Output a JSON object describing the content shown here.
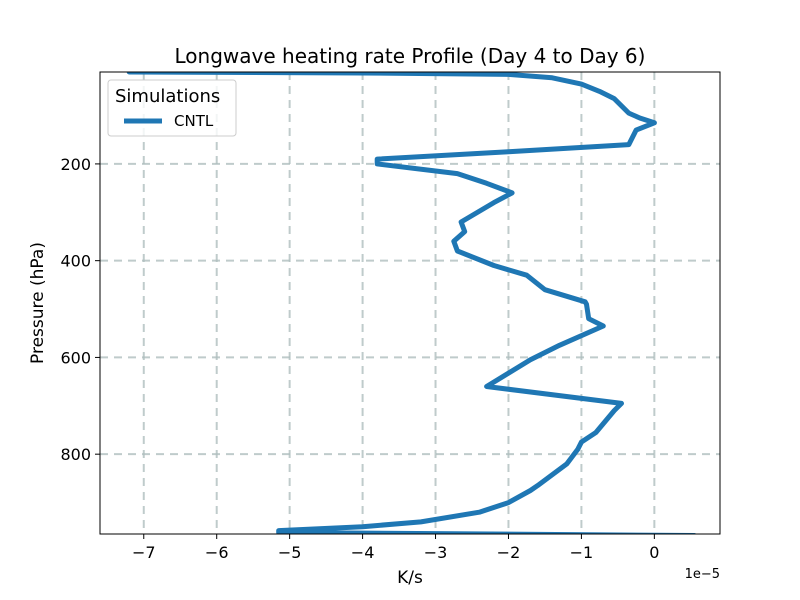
{
  "chart_data": {
    "type": "line",
    "title": "Longwave heating rate Profile (Day 4 to Day 6)",
    "xlabel": "K/s",
    "ylabel": "Pressure (hPa)",
    "x_offset_label": "1e−5",
    "xlim": [
      -7.6,
      0.9
    ],
    "ylim": [
      965,
      10
    ],
    "y_inverted": true,
    "grid": true,
    "x_ticks": [
      -7,
      -6,
      -5,
      -4,
      -3,
      -2,
      -1,
      0
    ],
    "x_tick_labels": [
      "−7",
      "−6",
      "−5",
      "−4",
      "−3",
      "−2",
      "−1",
      "0"
    ],
    "y_ticks": [
      200,
      400,
      600,
      800
    ],
    "y_tick_labels": [
      "200",
      "400",
      "600",
      "800"
    ],
    "legend": {
      "title": "Simulations",
      "placement": "top-left"
    },
    "series": [
      {
        "name": "CNTL",
        "color": "#1f77b4",
        "x": [
          -7.2,
          -4.0,
          -2.0,
          -1.4,
          -1.0,
          -0.75,
          -0.55,
          -0.45,
          -0.35,
          -0.2,
          0.0,
          -0.25,
          -0.35,
          -2.0,
          -3.8,
          -3.8,
          -2.7,
          -2.3,
          -1.95,
          -2.2,
          -2.65,
          -2.6,
          -2.75,
          -2.7,
          -2.2,
          -1.75,
          -1.5,
          -0.95,
          -0.93,
          -0.9,
          -0.7,
          -1.3,
          -1.7,
          -2.3,
          -0.45,
          -0.55,
          -0.8,
          -1.0,
          -1.05,
          -1.2,
          -1.6,
          -1.7,
          -2.0,
          -2.4,
          -3.2,
          -4.0,
          -5.15,
          -5.15,
          0.55
        ],
        "y": [
          10,
          12,
          15,
          22,
          35,
          50,
          65,
          80,
          95,
          105,
          115,
          130,
          160,
          175,
          190,
          200,
          220,
          240,
          260,
          280,
          320,
          340,
          360,
          380,
          410,
          430,
          460,
          485,
          490,
          520,
          535,
          575,
          605,
          660,
          695,
          710,
          755,
          775,
          790,
          820,
          865,
          875,
          900,
          920,
          940,
          950,
          958,
          962,
          968
        ]
      }
    ]
  }
}
